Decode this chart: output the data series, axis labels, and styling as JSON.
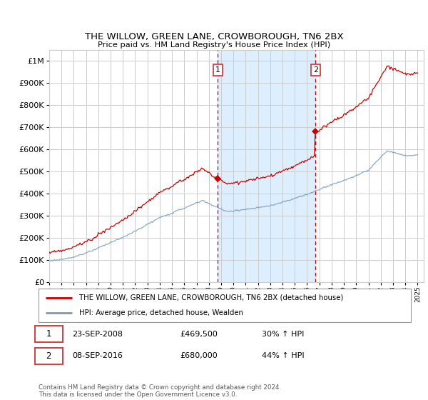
{
  "title": "THE WILLOW, GREEN LANE, CROWBOROUGH, TN6 2BX",
  "subtitle": "Price paid vs. HM Land Registry's House Price Index (HPI)",
  "ylim": [
    0,
    1050000
  ],
  "yticks": [
    0,
    100000,
    200000,
    300000,
    400000,
    500000,
    600000,
    700000,
    800000,
    900000,
    1000000
  ],
  "ytick_labels": [
    "£0",
    "£100K",
    "£200K",
    "£300K",
    "£400K",
    "£500K",
    "£600K",
    "£700K",
    "£800K",
    "£900K",
    "£1M"
  ],
  "purchase1_x": 2008.73,
  "purchase1_y": 469500,
  "purchase1_label": "23-SEP-2008",
  "purchase1_price": "£469,500",
  "purchase1_hpi": "30% ↑ HPI",
  "purchase2_x": 2016.69,
  "purchase2_y": 680000,
  "purchase2_label": "08-SEP-2016",
  "purchase2_price": "£680,000",
  "purchase2_hpi": "44% ↑ HPI",
  "legend_line1": "THE WILLOW, GREEN LANE, CROWBOROUGH, TN6 2BX (detached house)",
  "legend_line2": "HPI: Average price, detached house, Wealden",
  "footer": "Contains HM Land Registry data © Crown copyright and database right 2024.\nThis data is licensed under the Open Government Licence v3.0.",
  "red_color": "#cc0000",
  "blue_color": "#7799bb",
  "shading_color": "#ddeeff",
  "grid_color": "#cccccc",
  "xlim_start": 1995,
  "xlim_end": 2025.5,
  "box_edge_color": "#cc3333"
}
